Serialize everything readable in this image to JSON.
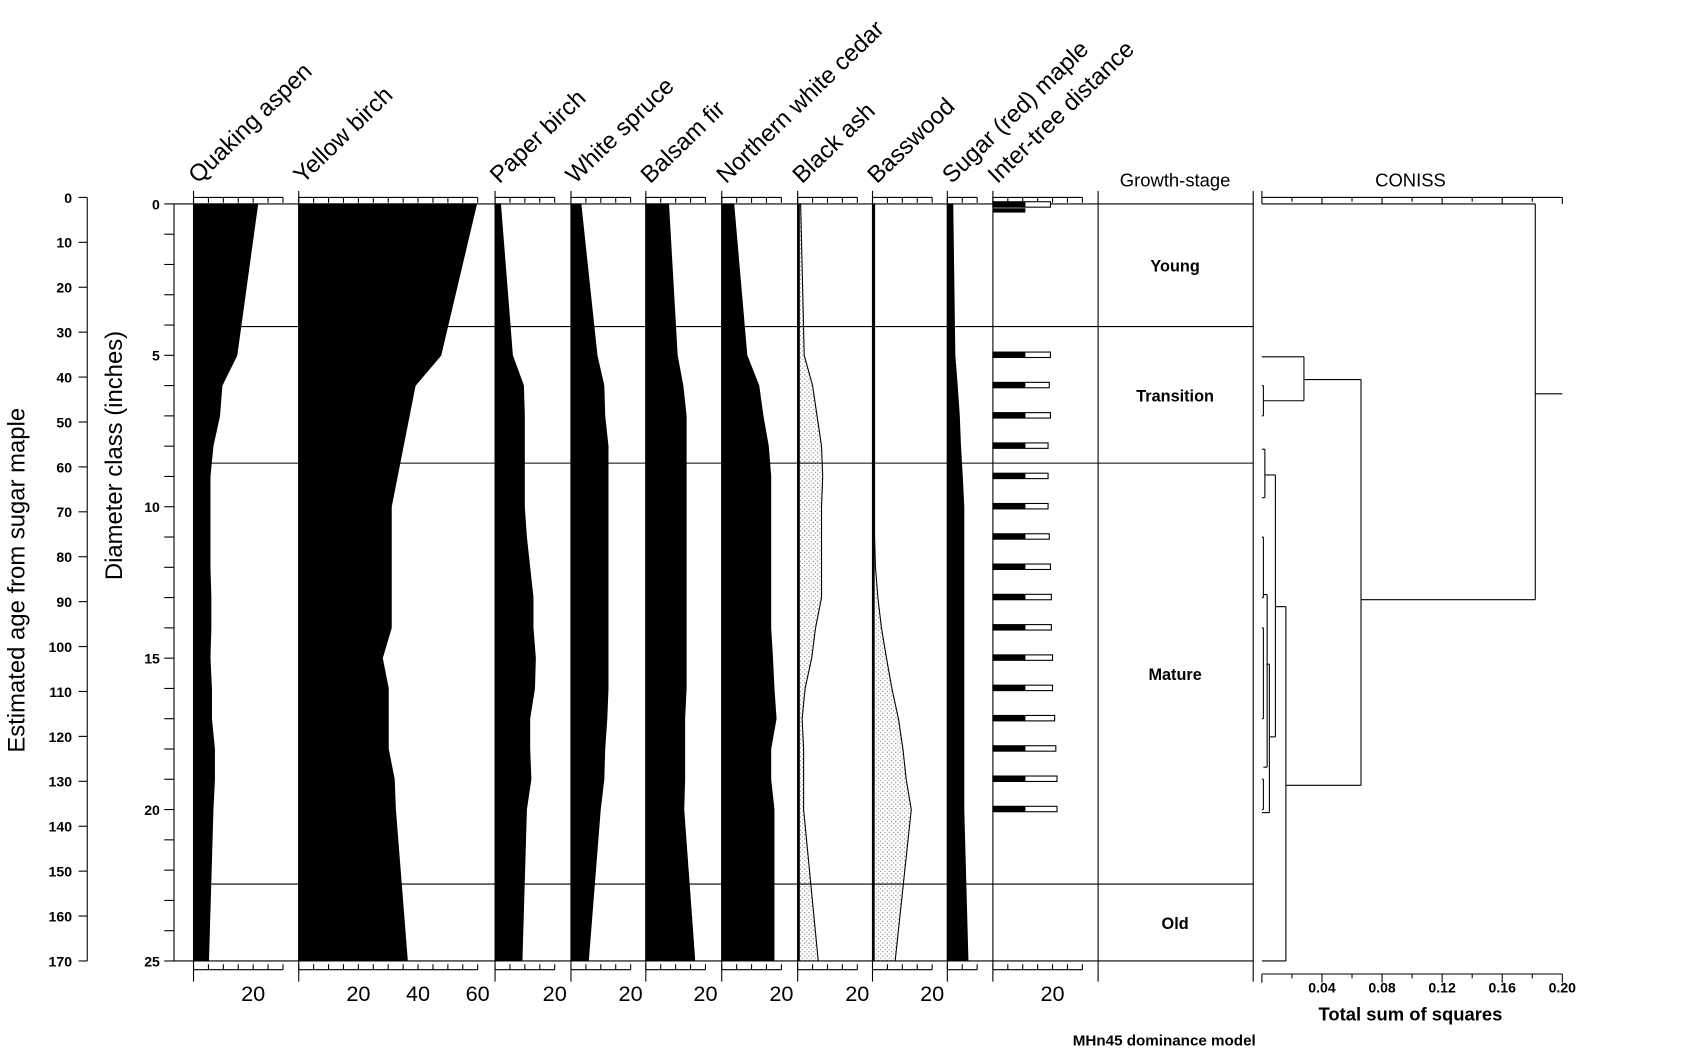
{
  "chart_data": {
    "type": "area",
    "subtype": "stratigraphic diagram with CONISS dendrogram",
    "caption": "MHn45 dominance model",
    "depth_axis": {
      "label": "Diameter class (inches)",
      "range": [
        0,
        25
      ],
      "tick_labels": [
        "0",
        "5",
        "10",
        "15",
        "20",
        "25"
      ]
    },
    "age_axis": {
      "label": "Estimated age from sugar maple",
      "range": [
        0,
        170
      ],
      "tick_labels": [
        "0",
        "10",
        "20",
        "30",
        "40",
        "50",
        "60",
        "70",
        "80",
        "90",
        "100",
        "110",
        "120",
        "130",
        "140",
        "150",
        "160",
        "170"
      ]
    },
    "depths": [
      0,
      5,
      6,
      7,
      8,
      9,
      10,
      11,
      12,
      13,
      14,
      15,
      16,
      17,
      18,
      19,
      20,
      25
    ],
    "series": [
      {
        "name": "Quaking aspen",
        "fill": "solid",
        "max": 30,
        "bottom_labels": [
          "20"
        ],
        "values": [
          21.5,
          14.5,
          9.5,
          8.7,
          6.5,
          5.5,
          5.5,
          5.5,
          5.5,
          5.8,
          5.8,
          5.5,
          6,
          6,
          7,
          7,
          6.5,
          5
        ]
      },
      {
        "name": "Yellow birch",
        "fill": "solid",
        "max": 60,
        "bottom_labels": [
          "20",
          "40",
          "60"
        ],
        "values": [
          59.6,
          47.6,
          39,
          37,
          35,
          33,
          31,
          31,
          31,
          31,
          31,
          28,
          30,
          30,
          30,
          32,
          32.4,
          36.4
        ]
      },
      {
        "name": "Paper birch",
        "fill": "solid",
        "max": 20,
        "bottom_labels": [
          "20"
        ],
        "values": [
          1.8,
          5.8,
          9.5,
          9.8,
          9.8,
          9.8,
          9.8,
          10.5,
          11.6,
          12.7,
          12.7,
          13.5,
          13.2,
          11.6,
          11.6,
          12,
          10.5,
          9
        ]
      },
      {
        "name": "White spruce",
        "fill": "solid",
        "max": 20,
        "bottom_labels": [
          "20"
        ],
        "values": [
          3.3,
          8.7,
          11,
          11.3,
          12.4,
          12.4,
          12.4,
          12.4,
          12.4,
          12.4,
          12.4,
          12.4,
          12.4,
          12,
          11.3,
          11,
          9.8,
          5.8
        ]
      },
      {
        "name": "Balsam fir",
        "fill": "solid",
        "max": 20,
        "bottom_labels": [
          "20"
        ],
        "values": [
          7.6,
          10.5,
          12.4,
          13.5,
          13.5,
          13.5,
          13.5,
          13.5,
          13.5,
          13.5,
          13.5,
          13.5,
          13.5,
          13,
          13,
          13,
          12.7,
          16.4
        ]
      },
      {
        "name": "Northern white cedar",
        "fill": "solid",
        "max": 20,
        "bottom_labels": [
          "20"
        ],
        "values": [
          4,
          8.4,
          12.4,
          13.8,
          15.6,
          16.4,
          16.4,
          16.4,
          16.4,
          16.4,
          16.4,
          17,
          17.5,
          18.2,
          16.4,
          16.4,
          17.5,
          17.5
        ]
      },
      {
        "name": "Black ash",
        "fill": "stipple",
        "max": 20,
        "bottom_labels": [
          "20"
        ],
        "values": [
          1,
          2.2,
          5,
          6.5,
          8,
          8.4,
          8,
          8,
          8,
          8,
          6,
          4.7,
          2.5,
          1.5,
          2,
          2,
          2,
          6.9
        ]
      },
      {
        "name": "Basswood",
        "fill": "stipple",
        "max": 20,
        "bottom_labels": [
          "20"
        ],
        "values": [
          0.7,
          0.7,
          0.7,
          0.7,
          0.7,
          0.7,
          0.7,
          0.7,
          1,
          1.8,
          3,
          4.7,
          6.5,
          8.7,
          10.2,
          11.3,
          13,
          7.6
        ]
      },
      {
        "name": "Sugar (red) maple",
        "fill": "solid",
        "max": 10,
        "bottom_labels": [],
        "values": [
          1.8,
          2.5,
          3.3,
          4,
          4.4,
          5,
          5.5,
          5.5,
          5.5,
          5.5,
          5.5,
          5.5,
          5.5,
          5.5,
          5.5,
          5.5,
          5.5,
          6.9
        ]
      }
    ],
    "inter_tree_distance": {
      "name": "Inter-tree distance",
      "max": 30,
      "bottom_labels": [
        "20"
      ],
      "depths": [
        0,
        5,
        6,
        7,
        8,
        9,
        10,
        11,
        12,
        13,
        14,
        15,
        16,
        17,
        18,
        19,
        20
      ],
      "black_values": [
        10.9,
        10.9,
        10.9,
        10.9,
        10.9,
        10.9,
        10.9,
        10.9,
        10.9,
        10.9,
        10.9,
        10.9,
        10.9,
        10.9,
        10.9,
        10.9,
        10.9
      ],
      "total_values": [
        19.3,
        19.3,
        18.9,
        19.3,
        18.5,
        18.5,
        18.5,
        18.9,
        19.3,
        19.6,
        19.6,
        20,
        20,
        20.7,
        21.1,
        21.5,
        21.5
      ]
    },
    "growth_stage": {
      "title": "Growth-stage",
      "boundaries": [
        4.05,
        8.56,
        22.46
      ],
      "zones": [
        "Young",
        "Transition",
        "Mature",
        "Old"
      ]
    },
    "coniss": {
      "title": "CONISS",
      "xlabel": "Total sum of squares",
      "xlim": [
        0,
        0.2
      ],
      "tick_labels": [
        "0.04",
        "0.08",
        "0.12",
        "0.16",
        "0.20"
      ],
      "nodes": [
        {
          "h": 0.182,
          "top": 0,
          "bottom": 13.07,
          "top_child_h": 0,
          "bottom_child_h": 0.066
        },
        {
          "h": 0.066,
          "top": 5.8,
          "bottom": 19.2,
          "top_child_h": 0.028,
          "bottom_child_h": 0.016
        },
        {
          "h": 0.028,
          "top": 5.05,
          "bottom": 6.5,
          "top_child_h": 0,
          "bottom_child_h": 0.001
        },
        {
          "h": 0.001,
          "top": 6,
          "bottom": 7,
          "top_child_h": 0,
          "bottom_child_h": 0
        },
        {
          "h": 0.016,
          "top": 13.3,
          "bottom": 25,
          "top_child_h": 0.009,
          "bottom_child_h": 0
        },
        {
          "h": 0.009,
          "top": 8.95,
          "bottom": 17.6,
          "top_child_h": 0.002,
          "bottom_child_h": 0.005
        },
        {
          "h": 0.002,
          "top": 8.1,
          "bottom": 9.7,
          "top_child_h": 0,
          "bottom_child_h": 0
        },
        {
          "h": 0.005,
          "top": 15.2,
          "bottom": 20.1,
          "top_child_h": 0.0035,
          "bottom_child_h": 0
        },
        {
          "h": 0.0035,
          "top": 12.9,
          "bottom": 18.6,
          "top_child_h": 0.001,
          "bottom_child_h": 0.001
        },
        {
          "h": 0.001,
          "top": 11,
          "bottom": 13,
          "top_child_h": 0,
          "bottom_child_h": 0
        },
        {
          "h": 0.001,
          "top": 14,
          "bottom": 17,
          "top_child_h": 0,
          "bottom_child_h": 0
        },
        {
          "h": 0.001,
          "top": 19,
          "bottom": 20,
          "top_child_h": 0,
          "bottom_child_h": 0
        }
      ],
      "root_stub": {
        "at": 6.27,
        "to": 0.2
      }
    }
  }
}
